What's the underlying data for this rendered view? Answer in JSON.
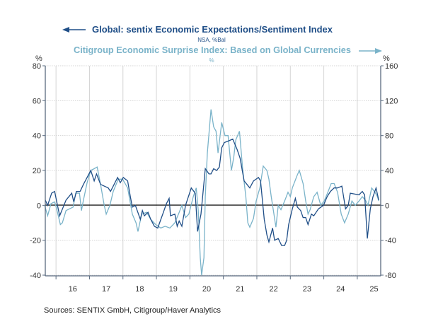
{
  "chart_data": {
    "type": "line",
    "title": "Global: sentix Economic Expectations/Sentiment Index",
    "subtitle": "NSA, %Bal",
    "title2": "Citigroup Economic Surprise Index: Based on Global Currencies",
    "subtitle2": "%",
    "left_unit": "%",
    "right_unit": "%",
    "source": "Sources:  SENTIX GmbH, Citigroup/Haver Analytics",
    "xlim": [
      2015.68,
      2025.7
    ],
    "ylim_left": [
      -40,
      80
    ],
    "ylim_right": [
      -80,
      160
    ],
    "left_ticks": [
      "80",
      "60",
      "40",
      "20",
      "0",
      "-20",
      "-40"
    ],
    "right_ticks": [
      "160",
      "120",
      "80",
      "40",
      "0",
      "-40",
      "-80"
    ],
    "x_tick_labels": [
      "16",
      "17",
      "18",
      "19",
      "20",
      "21",
      "22",
      "23",
      "24",
      "25"
    ],
    "grid": true,
    "colors": {
      "sentix": "#1f4e87",
      "citi": "#7ab3c9",
      "axis": "#5a6b80",
      "grid": "#d4d4d4"
    },
    "series": [
      {
        "name": "Global: sentix Economic Expectations/Sentiment Index",
        "axis": "left",
        "x": [
          2015.68,
          2015.75,
          2015.87,
          2015.96,
          2016.11,
          2016.3,
          2016.47,
          2016.53,
          2016.61,
          2016.72,
          2016.82,
          2017.04,
          2017.14,
          2017.21,
          2017.33,
          2017.56,
          2017.63,
          2017.71,
          2017.84,
          2017.92,
          2018.01,
          2018.14,
          2018.22,
          2018.28,
          2018.37,
          2018.52,
          2018.58,
          2018.64,
          2018.75,
          2018.83,
          2018.94,
          2019.04,
          2019.19,
          2019.3,
          2019.38,
          2019.42,
          2019.55,
          2019.62,
          2019.68,
          2019.76,
          2019.87,
          2020.04,
          2020.16,
          2020.23,
          2020.33,
          2020.46,
          2020.57,
          2020.63,
          2020.71,
          2020.8,
          2020.88,
          2020.95,
          2021.03,
          2021.16,
          2021.28,
          2021.41,
          2021.5,
          2021.62,
          2021.79,
          2021.9,
          2022.05,
          2022.11,
          2022.22,
          2022.3,
          2022.36,
          2022.47,
          2022.53,
          2022.64,
          2022.74,
          2022.83,
          2022.89,
          2022.95,
          2023.06,
          2023.15,
          2023.21,
          2023.31,
          2023.38,
          2023.46,
          2023.53,
          2023.63,
          2023.7,
          2023.84,
          2023.99,
          2024.1,
          2024.2,
          2024.31,
          2024.41,
          2024.54,
          2024.65,
          2024.73,
          2024.79,
          2025.05,
          2025.15,
          2025.22,
          2025.3,
          2025.39,
          2025.47,
          2025.56,
          2025.64
        ],
        "y": [
          3,
          0,
          7,
          8,
          -6,
          3,
          7,
          2,
          8,
          8,
          12,
          20,
          14,
          18,
          12,
          10,
          8,
          11,
          16,
          13,
          16,
          14,
          5,
          -1,
          0,
          -8,
          -3,
          -6,
          -4,
          -8,
          -12,
          -13,
          -5,
          1,
          4,
          -6,
          -5,
          -12,
          -9,
          -12,
          0,
          10,
          7,
          -15,
          -5,
          21,
          18,
          18,
          21,
          20,
          22,
          33,
          36,
          37,
          38,
          32,
          27,
          14,
          10,
          14,
          16,
          14,
          -8,
          -17,
          -21,
          -13,
          -20,
          -19,
          -23,
          -23,
          -20,
          -11,
          -2,
          4,
          -1,
          -3,
          -7,
          -7,
          -11,
          -5,
          -6,
          -2,
          0,
          5,
          8,
          10,
          10,
          11,
          -2,
          0,
          7,
          6,
          8,
          6,
          -19,
          -2,
          5,
          10,
          3
        ]
      },
      {
        "name": "Citigroup Economic Surprise Index: Based on Global Currencies",
        "axis": "right",
        "x": [
          2015.66,
          2015.75,
          2015.85,
          2015.96,
          2016.02,
          2016.13,
          2016.19,
          2016.3,
          2016.4,
          2016.51,
          2016.59,
          2016.7,
          2016.76,
          2016.82,
          2016.93,
          2017.04,
          2017.14,
          2017.23,
          2017.33,
          2017.44,
          2017.5,
          2017.61,
          2017.71,
          2017.86,
          2017.99,
          2018.14,
          2018.28,
          2018.39,
          2018.45,
          2018.56,
          2018.71,
          2018.83,
          2018.98,
          2019.13,
          2019.26,
          2019.4,
          2019.55,
          2019.68,
          2019.76,
          2019.87,
          2019.97,
          2020.1,
          2020.19,
          2020.25,
          2020.31,
          2020.35,
          2020.42,
          2020.46,
          2020.52,
          2020.63,
          2020.71,
          2020.78,
          2020.84,
          2020.95,
          2021.05,
          2021.14,
          2021.24,
          2021.31,
          2021.37,
          2021.48,
          2021.58,
          2021.67,
          2021.73,
          2021.79,
          2021.9,
          2021.98,
          2022.09,
          2022.19,
          2022.3,
          2022.36,
          2022.43,
          2022.51,
          2022.57,
          2022.64,
          2022.72,
          2022.83,
          2022.93,
          2023.0,
          2023.06,
          2023.21,
          2023.27,
          2023.38,
          2023.46,
          2023.53,
          2023.59,
          2023.7,
          2023.8,
          2023.91,
          2024.01,
          2024.12,
          2024.22,
          2024.31,
          2024.41,
          2024.52,
          2024.62,
          2024.73,
          2024.84,
          2024.94,
          2025.05,
          2025.15,
          2025.26,
          2025.32,
          2025.43,
          2025.53,
          2025.6,
          2025.64
        ],
        "y": [
          0,
          -12,
          2,
          4,
          -4,
          -22,
          -20,
          -6,
          -4,
          -2,
          14,
          14,
          -6,
          6,
          26,
          40,
          42,
          44,
          24,
          0,
          -10,
          0,
          16,
          30,
          30,
          20,
          -10,
          -20,
          -30,
          -10,
          -8,
          -16,
          -22,
          -26,
          -24,
          -26,
          -20,
          -8,
          0,
          -14,
          -10,
          10,
          20,
          -6,
          -60,
          -80,
          -60,
          10,
          60,
          110,
          90,
          85,
          60,
          95,
          80,
          80,
          40,
          55,
          75,
          85,
          40,
          10,
          -20,
          -25,
          -15,
          5,
          20,
          45,
          40,
          30,
          10,
          -10,
          -25,
          0,
          -5,
          5,
          15,
          10,
          20,
          35,
          40,
          25,
          5,
          -10,
          -5,
          10,
          15,
          0,
          5,
          15,
          25,
          25,
          15,
          -10,
          -20,
          -10,
          5,
          0,
          5,
          10,
          5,
          0,
          20,
          15,
          10,
          5
        ]
      }
    ]
  }
}
